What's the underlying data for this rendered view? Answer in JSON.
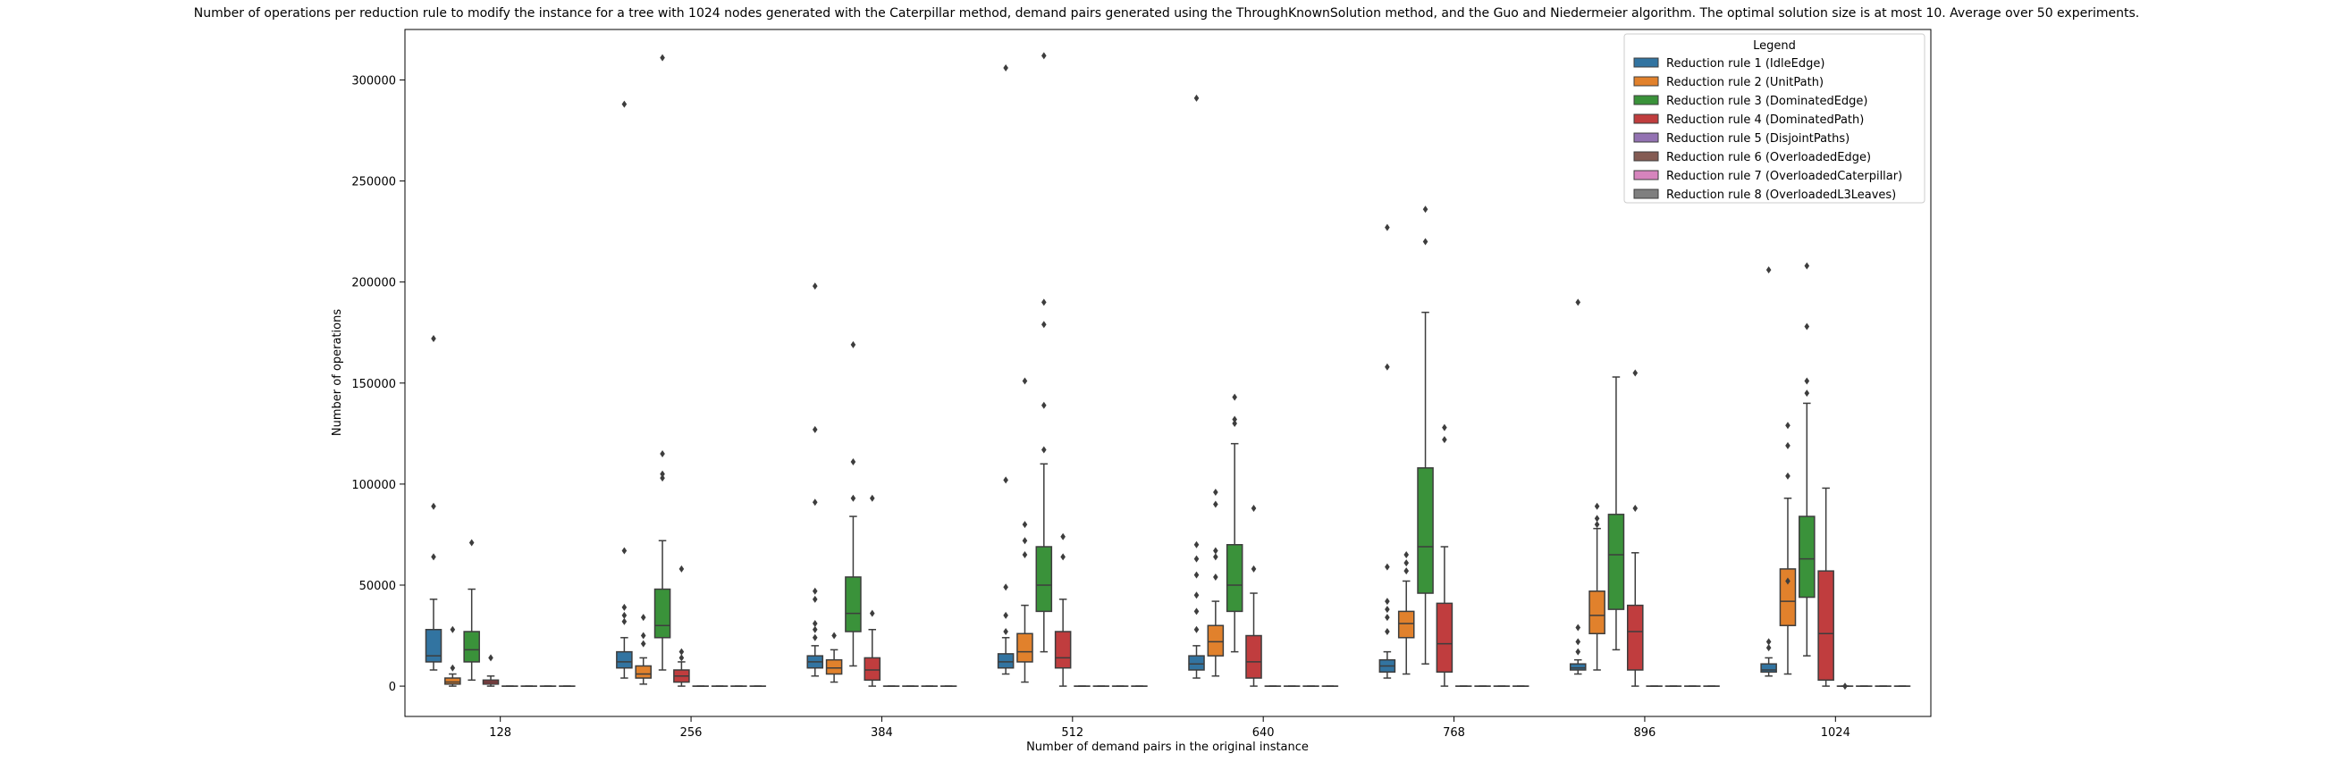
{
  "chart_data": {
    "type": "box",
    "title": "Number of operations per reduction rule to modify the instance for a tree with 1024 nodes generated with the Caterpillar method, demand pairs generated using the ThroughKnownSolution method, and the Guo and Niedermeier algorithm. The optimal solution size is at most 10. Average over 50 experiments.",
    "xlabel": "Number of demand pairs in the original instance",
    "ylabel": "Number of operations",
    "categories": [
      "128",
      "256",
      "384",
      "512",
      "640",
      "768",
      "896",
      "1024"
    ],
    "ylim": [
      -15000,
      325000
    ],
    "yticks": [
      0,
      50000,
      100000,
      150000,
      200000,
      250000,
      300000
    ],
    "ytick_labels": [
      "0",
      "50000",
      "100000",
      "150000",
      "200000",
      "250000",
      "300000"
    ],
    "grid": false,
    "legend": {
      "title": "Legend",
      "position": "top-right"
    },
    "series": [
      {
        "name": "Reduction rule 1 (IdleEdge)",
        "color": "#3274a1",
        "boxes": [
          {
            "wl": 8000,
            "q1": 12000,
            "med": 15000,
            "q3": 28000,
            "wh": 43000,
            "out": [
              64000,
              89000,
              172000
            ]
          },
          {
            "wl": 4000,
            "q1": 9000,
            "med": 12000,
            "q3": 17000,
            "wh": 24000,
            "out": [
              32000,
              35000,
              39000,
              67000,
              288000
            ]
          },
          {
            "wl": 5000,
            "q1": 9000,
            "med": 12000,
            "q3": 15000,
            "wh": 20000,
            "out": [
              24000,
              28000,
              31000,
              43000,
              47000,
              91000,
              127000,
              198000
            ]
          },
          {
            "wl": 6000,
            "q1": 9000,
            "med": 12000,
            "q3": 16000,
            "wh": 24000,
            "out": [
              27000,
              35000,
              49000,
              102000,
              306000
            ]
          },
          {
            "wl": 4000,
            "q1": 8000,
            "med": 11000,
            "q3": 15000,
            "wh": 20000,
            "out": [
              28000,
              37000,
              45000,
              55000,
              63000,
              70000,
              291000
            ]
          },
          {
            "wl": 4000,
            "q1": 7000,
            "med": 10000,
            "q3": 13000,
            "wh": 17000,
            "out": [
              27000,
              34000,
              38000,
              42000,
              59000,
              158000,
              227000
            ]
          },
          {
            "wl": 6000,
            "q1": 8000,
            "med": 9000,
            "q3": 11000,
            "wh": 13000,
            "out": [
              17000,
              22000,
              29000,
              190000
            ]
          },
          {
            "wl": 5000,
            "q1": 7000,
            "med": 8000,
            "q3": 11000,
            "wh": 14000,
            "out": [
              19000,
              22000,
              206000
            ]
          }
        ]
      },
      {
        "name": "Reduction rule 2 (UnitPath)",
        "color": "#e1812c",
        "boxes": [
          {
            "wl": 0,
            "q1": 1000,
            "med": 2000,
            "q3": 4000,
            "wh": 6000,
            "out": [
              9000,
              28000
            ]
          },
          {
            "wl": 1000,
            "q1": 4000,
            "med": 6000,
            "q3": 10000,
            "wh": 14000,
            "out": [
              21000,
              25000,
              34000
            ]
          },
          {
            "wl": 2000,
            "q1": 6000,
            "med": 9000,
            "q3": 13000,
            "wh": 18000,
            "out": [
              25000
            ]
          },
          {
            "wl": 2000,
            "q1": 12000,
            "med": 17000,
            "q3": 26000,
            "wh": 40000,
            "out": [
              65000,
              72000,
              80000,
              151000
            ]
          },
          {
            "wl": 5000,
            "q1": 15000,
            "med": 22000,
            "q3": 30000,
            "wh": 42000,
            "out": [
              54000,
              64000,
              67000,
              90000,
              96000
            ]
          },
          {
            "wl": 6000,
            "q1": 24000,
            "med": 31000,
            "q3": 37000,
            "wh": 52000,
            "out": [
              57000,
              61000,
              65000
            ]
          },
          {
            "wl": 8000,
            "q1": 26000,
            "med": 35000,
            "q3": 47000,
            "wh": 78000,
            "out": [
              80000,
              83000,
              89000
            ]
          },
          {
            "wl": 6000,
            "q1": 30000,
            "med": 42000,
            "q3": 58000,
            "wh": 93000,
            "out": [
              52000,
              104000,
              119000,
              129000
            ]
          }
        ]
      },
      {
        "name": "Reduction rule 3 (DominatedEdge)",
        "color": "#3a923a",
        "boxes": [
          {
            "wl": 3000,
            "q1": 12000,
            "med": 18000,
            "q3": 27000,
            "wh": 48000,
            "out": [
              71000
            ]
          },
          {
            "wl": 8000,
            "q1": 24000,
            "med": 30000,
            "q3": 48000,
            "wh": 72000,
            "out": [
              103000,
              105000,
              115000,
              311000
            ]
          },
          {
            "wl": 10000,
            "q1": 27000,
            "med": 36000,
            "q3": 54000,
            "wh": 84000,
            "out": [
              93000,
              111000,
              169000
            ]
          },
          {
            "wl": 17000,
            "q1": 37000,
            "med": 50000,
            "q3": 69000,
            "wh": 110000,
            "out": [
              117000,
              139000,
              179000,
              190000,
              312000
            ]
          },
          {
            "wl": 17000,
            "q1": 37000,
            "med": 50000,
            "q3": 70000,
            "wh": 120000,
            "out": [
              130000,
              132000,
              143000
            ]
          },
          {
            "wl": 11000,
            "q1": 46000,
            "med": 69000,
            "q3": 108000,
            "wh": 185000,
            "out": [
              220000,
              236000
            ]
          },
          {
            "wl": 18000,
            "q1": 38000,
            "med": 65000,
            "q3": 85000,
            "wh": 153000,
            "out": []
          },
          {
            "wl": 15000,
            "q1": 44000,
            "med": 63000,
            "q3": 84000,
            "wh": 140000,
            "out": [
              145000,
              151000,
              178000,
              208000
            ]
          }
        ]
      },
      {
        "name": "Reduction rule 4 (DominatedPath)",
        "color": "#c03d3e",
        "boxes": [
          {
            "wl": 0,
            "q1": 1000,
            "med": 2000,
            "q3": 3000,
            "wh": 5000,
            "out": [
              14000
            ]
          },
          {
            "wl": 0,
            "q1": 2000,
            "med": 5000,
            "q3": 8000,
            "wh": 12000,
            "out": [
              14000,
              17000,
              58000
            ]
          },
          {
            "wl": 0,
            "q1": 3000,
            "med": 8000,
            "q3": 14000,
            "wh": 28000,
            "out": [
              36000,
              93000
            ]
          },
          {
            "wl": 0,
            "q1": 9000,
            "med": 14000,
            "q3": 27000,
            "wh": 43000,
            "out": [
              64000,
              74000
            ]
          },
          {
            "wl": 0,
            "q1": 4000,
            "med": 12000,
            "q3": 25000,
            "wh": 46000,
            "out": [
              58000,
              88000
            ]
          },
          {
            "wl": 0,
            "q1": 7000,
            "med": 21000,
            "q3": 41000,
            "wh": 69000,
            "out": [
              122000,
              128000
            ]
          },
          {
            "wl": 0,
            "q1": 8000,
            "med": 27000,
            "q3": 40000,
            "wh": 66000,
            "out": [
              88000,
              155000
            ]
          },
          {
            "wl": 0,
            "q1": 3000,
            "med": 26000,
            "q3": 57000,
            "wh": 98000,
            "out": []
          }
        ]
      },
      {
        "name": "Reduction rule 5 (DisjointPaths)",
        "color": "#9372b2",
        "boxes": [
          {
            "wl": 0,
            "q1": 0,
            "med": 0,
            "q3": 0,
            "wh": 0,
            "out": []
          },
          {
            "wl": 0,
            "q1": 0,
            "med": 0,
            "q3": 0,
            "wh": 0,
            "out": []
          },
          {
            "wl": 0,
            "q1": 0,
            "med": 0,
            "q3": 0,
            "wh": 0,
            "out": []
          },
          {
            "wl": 0,
            "q1": 0,
            "med": 0,
            "q3": 0,
            "wh": 0,
            "out": []
          },
          {
            "wl": 0,
            "q1": 0,
            "med": 0,
            "q3": 0,
            "wh": 0,
            "out": []
          },
          {
            "wl": 0,
            "q1": 0,
            "med": 0,
            "q3": 0,
            "wh": 0,
            "out": []
          },
          {
            "wl": 0,
            "q1": 0,
            "med": 0,
            "q3": 0,
            "wh": 0,
            "out": []
          },
          {
            "wl": 0,
            "q1": 0,
            "med": 0,
            "q3": 0,
            "wh": 0,
            "out": [
              0
            ]
          }
        ]
      },
      {
        "name": "Reduction rule 6 (OverloadedEdge)",
        "color": "#845b53",
        "boxes": [
          {
            "wl": 0,
            "q1": 0,
            "med": 0,
            "q3": 0,
            "wh": 0,
            "out": []
          },
          {
            "wl": 0,
            "q1": 0,
            "med": 0,
            "q3": 0,
            "wh": 0,
            "out": []
          },
          {
            "wl": 0,
            "q1": 0,
            "med": 0,
            "q3": 0,
            "wh": 0,
            "out": []
          },
          {
            "wl": 0,
            "q1": 0,
            "med": 0,
            "q3": 0,
            "wh": 0,
            "out": []
          },
          {
            "wl": 0,
            "q1": 0,
            "med": 0,
            "q3": 0,
            "wh": 0,
            "out": []
          },
          {
            "wl": 0,
            "q1": 0,
            "med": 0,
            "q3": 0,
            "wh": 0,
            "out": []
          },
          {
            "wl": 0,
            "q1": 0,
            "med": 0,
            "q3": 0,
            "wh": 0,
            "out": []
          },
          {
            "wl": 0,
            "q1": 0,
            "med": 0,
            "q3": 0,
            "wh": 0,
            "out": []
          }
        ]
      },
      {
        "name": "Reduction rule 7 (OverloadedCaterpillar)",
        "color": "#d684bd",
        "boxes": [
          {
            "wl": 0,
            "q1": 0,
            "med": 0,
            "q3": 0,
            "wh": 0,
            "out": []
          },
          {
            "wl": 0,
            "q1": 0,
            "med": 0,
            "q3": 0,
            "wh": 0,
            "out": []
          },
          {
            "wl": 0,
            "q1": 0,
            "med": 0,
            "q3": 0,
            "wh": 0,
            "out": []
          },
          {
            "wl": 0,
            "q1": 0,
            "med": 0,
            "q3": 0,
            "wh": 0,
            "out": []
          },
          {
            "wl": 0,
            "q1": 0,
            "med": 0,
            "q3": 0,
            "wh": 0,
            "out": []
          },
          {
            "wl": 0,
            "q1": 0,
            "med": 0,
            "q3": 0,
            "wh": 0,
            "out": []
          },
          {
            "wl": 0,
            "q1": 0,
            "med": 0,
            "q3": 0,
            "wh": 0,
            "out": []
          },
          {
            "wl": 0,
            "q1": 0,
            "med": 0,
            "q3": 0,
            "wh": 0,
            "out": []
          }
        ]
      },
      {
        "name": "Reduction rule 8 (OverloadedL3Leaves)",
        "color": "#7f7f7f",
        "boxes": [
          {
            "wl": 0,
            "q1": 0,
            "med": 0,
            "q3": 0,
            "wh": 0,
            "out": []
          },
          {
            "wl": 0,
            "q1": 0,
            "med": 0,
            "q3": 0,
            "wh": 0,
            "out": []
          },
          {
            "wl": 0,
            "q1": 0,
            "med": 0,
            "q3": 0,
            "wh": 0,
            "out": []
          },
          {
            "wl": 0,
            "q1": 0,
            "med": 0,
            "q3": 0,
            "wh": 0,
            "out": []
          },
          {
            "wl": 0,
            "q1": 0,
            "med": 0,
            "q3": 0,
            "wh": 0,
            "out": []
          },
          {
            "wl": 0,
            "q1": 0,
            "med": 0,
            "q3": 0,
            "wh": 0,
            "out": []
          },
          {
            "wl": 0,
            "q1": 0,
            "med": 0,
            "q3": 0,
            "wh": 0,
            "out": []
          },
          {
            "wl": 0,
            "q1": 0,
            "med": 0,
            "q3": 0,
            "wh": 0,
            "out": []
          }
        ]
      }
    ]
  }
}
